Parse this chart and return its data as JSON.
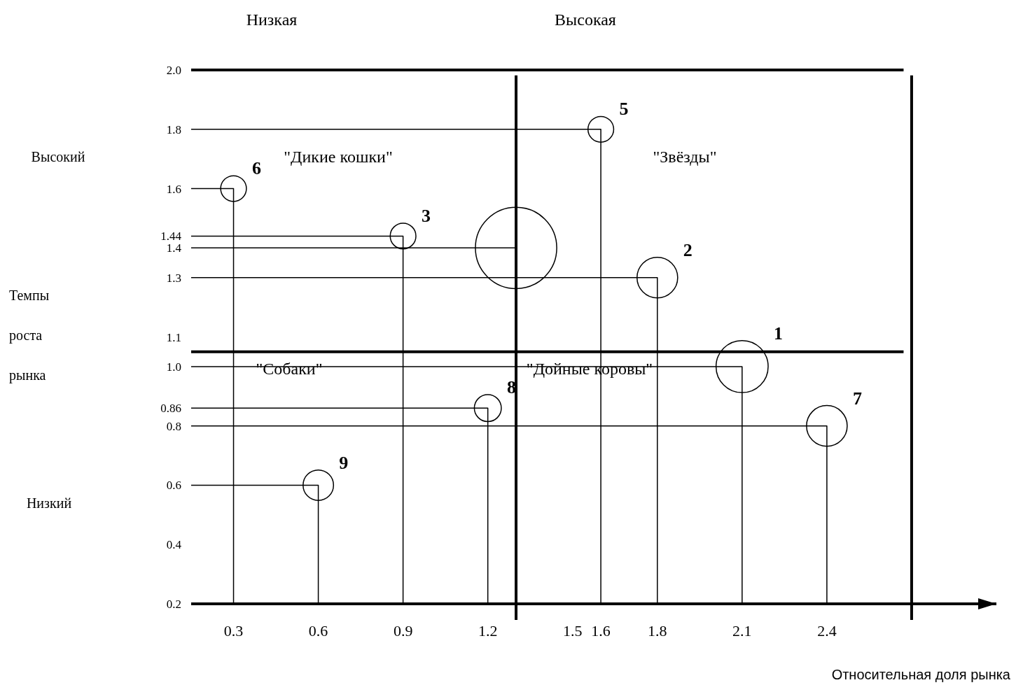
{
  "chart_data": {
    "type": "bubble",
    "xlabel": "Относительная доля рынка",
    "ylabel": "Темпы роста рынка",
    "annotations": [
      "Низкая",
      "Высокая",
      "Высокий",
      "Низкий",
      "\"Дикие кошки\"",
      "\"Звёзды\"",
      "\"Собаки\"",
      "\"Дойные коровы\"",
      {
        "text": "6",
        "x": 0.3,
        "y": 1.6
      },
      {
        "text": "3",
        "x": 0.9,
        "y": 1.44
      },
      {
        "text": "5",
        "x": 1.6,
        "y": 1.8
      },
      {
        "text": "2",
        "x": 1.8,
        "y": 1.3
      },
      {
        "text": "1",
        "x": 2.1,
        "y": 1.0
      },
      {
        "text": "7",
        "x": 2.4,
        "y": 0.8
      },
      {
        "text": "8",
        "x": 1.2,
        "y": 0.86
      },
      {
        "text": "9",
        "x": 0.6,
        "y": 0.6
      }
    ],
    "x": [
      0.3,
      0.9,
      1.3,
      1.6,
      1.8,
      2.1,
      2.4,
      1.2,
      0.6
    ],
    "series": [
      {
        "type": "line",
        "marker": "none",
        "color": "#000000",
        "x": [
          0.15,
          0.3,
          0.3
        ],
        "values": [
          1.6,
          1.6,
          0.2
        ]
      },
      {
        "type": "line",
        "marker": "none",
        "color": "#000000",
        "x": [
          0.15,
          0.9,
          0.9
        ],
        "values": [
          1.44,
          1.44,
          0.2
        ]
      },
      {
        "type": "line",
        "marker": "none",
        "color": "#000000",
        "x": [
          0.15,
          1.3
        ],
        "values": [
          1.4,
          1.4
        ]
      },
      {
        "type": "line",
        "marker": "none",
        "color": "#000000",
        "x": [
          0.15,
          1.6,
          1.6
        ],
        "values": [
          1.8,
          1.8,
          0.2
        ]
      },
      {
        "type": "line",
        "marker": "none",
        "color": "#000000",
        "x": [
          0.15,
          1.8,
          1.8
        ],
        "values": [
          1.3,
          1.3,
          0.2
        ]
      },
      {
        "type": "line",
        "marker": "none",
        "color": "#000000",
        "x": [
          0.15,
          2.1,
          2.1
        ],
        "values": [
          1.0,
          1.0,
          0.2
        ]
      },
      {
        "type": "line",
        "marker": "none",
        "color": "#000000",
        "x": [
          0.15,
          2.4,
          2.4
        ],
        "values": [
          0.8,
          0.8,
          0.2
        ]
      },
      {
        "type": "line",
        "marker": "none",
        "color": "#000000",
        "x": [
          0.15,
          1.2,
          1.2
        ],
        "values": [
          0.86,
          0.86,
          0.2
        ]
      },
      {
        "type": "line",
        "marker": "none",
        "color": "#000000",
        "x": [
          0.15,
          0.6,
          0.6
        ],
        "values": [
          0.6,
          0.6,
          0.2
        ]
      },
      {
        "color": "#000000",
        "values": [
          1.6,
          1.44,
          1.4,
          1.8,
          1.3,
          1.0,
          0.8,
          0.86,
          0.6
        ],
        "sizes": [
          0.1,
          0.1,
          1,
          0.1,
          0.25,
          0.41,
          0.25,
          0.11,
          0.14
        ]
      }
    ],
    "xlim": [
      0.15,
      3.0
    ],
    "xticks": [
      0.3,
      0.6,
      0.9,
      1.2,
      1.5,
      1.6,
      1.8,
      2.1,
      2.4
    ],
    "ylim": [
      0.2,
      2.0
    ],
    "yticks": [
      0.2,
      0.4,
      0.6,
      0.8,
      0.86,
      {
        "value": 1,
        "label": "1.0"
      },
      1.1,
      1.3,
      1.4,
      1.44,
      1.6,
      1.8,
      {
        "value": 2,
        "label": "2.0"
      }
    ],
    "ref_lines": [
      {
        "axis": "x",
        "value": 1.3
      },
      {
        "axis": "y",
        "value": 1.05
      },
      {
        "axis": "x",
        "value": 2.7
      },
      {
        "axis": "y",
        "value": 2.0
      },
      {
        "axis": "y",
        "value": 0.2
      }
    ],
    "marker": "circle",
    "grid": false,
    "legend": false
  }
}
